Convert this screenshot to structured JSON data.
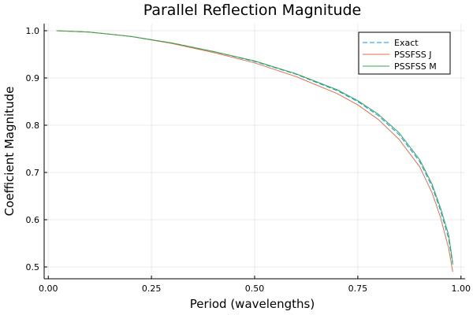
{
  "chart_data": {
    "type": "line",
    "title": "Parallel Reflection Magnitude",
    "xlabel": "Period (wavelengths)",
    "ylabel": "Coefficient Magnitude",
    "xlim": [
      -0.01,
      1.01
    ],
    "ylim": [
      0.475,
      1.015
    ],
    "xticks": [
      0.0,
      0.25,
      0.5,
      0.75,
      1.0
    ],
    "xtick_labels": [
      "0.00",
      "0.25",
      "0.50",
      "0.75",
      "1.00"
    ],
    "yticks": [
      0.5,
      0.6,
      0.7,
      0.8,
      0.9,
      1.0
    ],
    "ytick_labels": [
      "0.5",
      "0.6",
      "0.7",
      "0.8",
      "0.9",
      "1.0"
    ],
    "grid": true,
    "legend_position": "top-right",
    "x": [
      0.02,
      0.1,
      0.2,
      0.3,
      0.4,
      0.5,
      0.6,
      0.7,
      0.75,
      0.8,
      0.85,
      0.9,
      0.93,
      0.95,
      0.97,
      0.98
    ],
    "series": [
      {
        "name": "Exact",
        "color": "#009AFA",
        "dash": "dashed",
        "values": [
          1.0,
          0.997,
          0.988,
          0.974,
          0.956,
          0.935,
          0.908,
          0.873,
          0.85,
          0.82,
          0.78,
          0.723,
          0.67,
          0.62,
          0.56,
          0.505
        ]
      },
      {
        "name": "PSSFSS J",
        "color": "#E26F46",
        "dash": "solid",
        "values": [
          1.0,
          0.997,
          0.988,
          0.973,
          0.954,
          0.932,
          0.903,
          0.867,
          0.843,
          0.812,
          0.77,
          0.712,
          0.657,
          0.606,
          0.54,
          0.49
        ]
      },
      {
        "name": "PSSFSS M",
        "color": "#3DA44D",
        "dash": "solid",
        "values": [
          1.0,
          0.997,
          0.988,
          0.974,
          0.956,
          0.936,
          0.909,
          0.875,
          0.852,
          0.823,
          0.784,
          0.727,
          0.675,
          0.626,
          0.568,
          0.509
        ]
      }
    ]
  }
}
